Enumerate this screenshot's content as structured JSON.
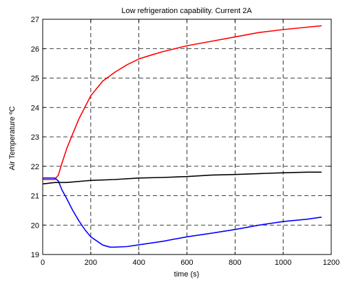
{
  "chart_data": {
    "type": "line",
    "title": "Low refrigeration capability. Current 2A",
    "xlabel": "time (s)",
    "ylabel": "Air Temperature ºC",
    "xlim": [
      0,
      1200
    ],
    "ylim": [
      19,
      27
    ],
    "xticks": [
      0,
      200,
      400,
      600,
      800,
      1000,
      1200
    ],
    "yticks": [
      19,
      20,
      21,
      22,
      23,
      24,
      25,
      26,
      27
    ],
    "grid": true,
    "series": [
      {
        "color": "#ff0000",
        "x": [
          0,
          50,
          65,
          80,
          100,
          125,
          150,
          175,
          200,
          250,
          300,
          350,
          400,
          450,
          500,
          600,
          700,
          800,
          900,
          1000,
          1100,
          1160
        ],
        "y": [
          21.55,
          21.55,
          21.7,
          22.1,
          22.6,
          23.1,
          23.6,
          24.0,
          24.4,
          24.9,
          25.2,
          25.45,
          25.65,
          25.78,
          25.9,
          26.1,
          26.25,
          26.4,
          26.55,
          26.65,
          26.73,
          26.78
        ]
      },
      {
        "color": "#0000ff",
        "x": [
          0,
          50,
          65,
          80,
          100,
          125,
          150,
          175,
          200,
          250,
          280,
          300,
          350,
          400,
          500,
          600,
          700,
          800,
          900,
          1000,
          1100,
          1160
        ],
        "y": [
          21.6,
          21.6,
          21.5,
          21.2,
          20.9,
          20.5,
          20.15,
          19.85,
          19.6,
          19.32,
          19.25,
          19.25,
          19.27,
          19.33,
          19.45,
          19.6,
          19.72,
          19.85,
          20.0,
          20.12,
          20.2,
          20.27
        ]
      },
      {
        "color": "#000000",
        "x": [
          0,
          50,
          100,
          200,
          300,
          400,
          500,
          600,
          700,
          800,
          900,
          1000,
          1100,
          1160
        ],
        "y": [
          21.4,
          21.45,
          21.45,
          21.52,
          21.55,
          21.6,
          21.62,
          21.65,
          21.7,
          21.72,
          21.75,
          21.78,
          21.8,
          21.8
        ]
      }
    ]
  }
}
